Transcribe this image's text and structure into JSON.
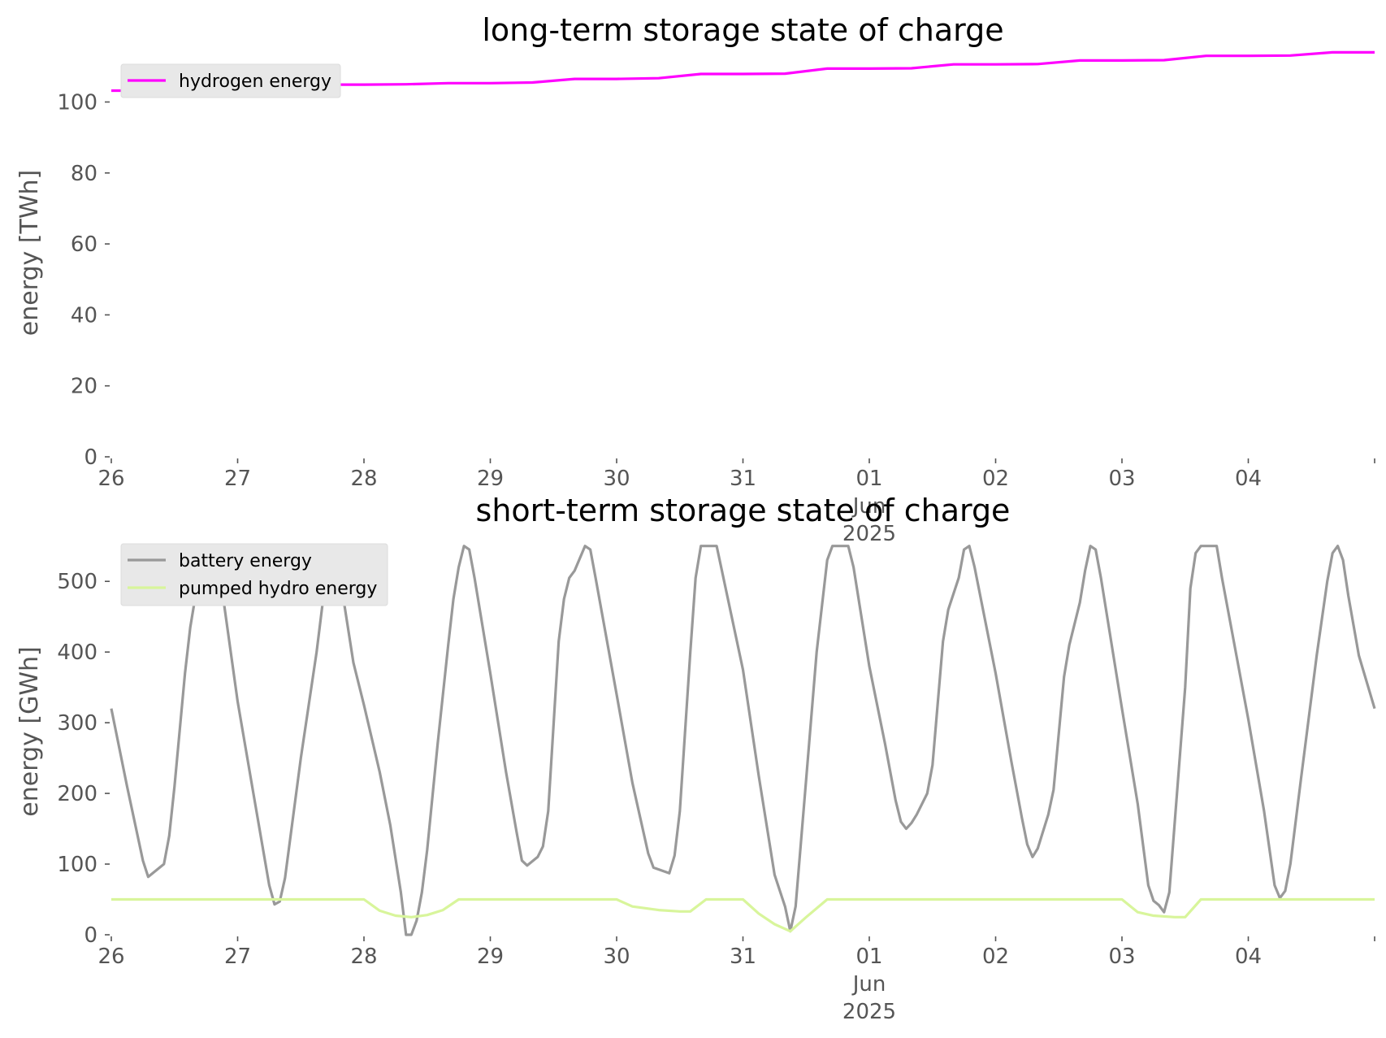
{
  "chart_data": [
    {
      "type": "line",
      "title": "long-term storage state of charge",
      "xlabel": "",
      "ylabel": "energy [TWh]",
      "ylim": [
        0,
        115
      ],
      "yticks": [
        0,
        20,
        40,
        60,
        80,
        100
      ],
      "xlim": [
        "2025-05-26",
        "2025-06-05"
      ],
      "xticks": [
        "2025-05-26",
        "2025-05-27",
        "2025-05-28",
        "2025-05-29",
        "2025-05-30",
        "2025-05-31",
        "2025-06-01",
        "2025-06-02",
        "2025-06-03",
        "2025-06-04",
        "2025-06-05"
      ],
      "xtick_labels": [
        "26",
        "27",
        "28",
        "29",
        "30",
        "31",
        "01\nJun\n2025",
        "02",
        "03",
        "04",
        ""
      ],
      "grid": false,
      "legend": "top-left",
      "series": [
        {
          "name": "hydrogen energy",
          "color": "#ff00ff",
          "points": [
            [
              "2025-05-26 00:00",
              103.2
            ],
            [
              "2025-05-26 08:00",
              103.2
            ],
            [
              "2025-05-26 16:00",
              104.2
            ],
            [
              "2025-05-27 00:00",
              104.2
            ],
            [
              "2025-05-27 08:00",
              104.3
            ],
            [
              "2025-05-27 16:00",
              104.9
            ],
            [
              "2025-05-28 00:00",
              104.9
            ],
            [
              "2025-05-28 08:00",
              105.0
            ],
            [
              "2025-05-28 16:00",
              105.3
            ],
            [
              "2025-05-29 00:00",
              105.3
            ],
            [
              "2025-05-29 08:00",
              105.5
            ],
            [
              "2025-05-29 16:00",
              106.5
            ],
            [
              "2025-05-30 00:00",
              106.5
            ],
            [
              "2025-05-30 08:00",
              106.7
            ],
            [
              "2025-05-30 16:00",
              107.9
            ],
            [
              "2025-05-31 00:00",
              107.9
            ],
            [
              "2025-05-31 08:00",
              108.0
            ],
            [
              "2025-05-31 16:00",
              109.4
            ],
            [
              "2025-06-01 00:00",
              109.4
            ],
            [
              "2025-06-01 08:00",
              109.5
            ],
            [
              "2025-06-01 16:00",
              110.6
            ],
            [
              "2025-06-02 00:00",
              110.6
            ],
            [
              "2025-06-02 08:00",
              110.7
            ],
            [
              "2025-06-02 16:00",
              111.7
            ],
            [
              "2025-06-03 00:00",
              111.7
            ],
            [
              "2025-06-03 08:00",
              111.8
            ],
            [
              "2025-06-03 16:00",
              113.0
            ],
            [
              "2025-06-04 00:00",
              113.0
            ],
            [
              "2025-06-04 08:00",
              113.1
            ],
            [
              "2025-06-04 16:00",
              114.0
            ],
            [
              "2025-06-05 00:00",
              114.0
            ]
          ]
        }
      ]
    },
    {
      "type": "line",
      "title": "short-term storage state of charge",
      "xlabel": "",
      "ylabel": "energy [GWh]",
      "ylim": [
        0,
        575
      ],
      "yticks": [
        0,
        100,
        200,
        300,
        400,
        500
      ],
      "xlim": [
        "2025-05-26",
        "2025-06-05"
      ],
      "xticks": [
        "2025-05-26",
        "2025-05-27",
        "2025-05-28",
        "2025-05-29",
        "2025-05-30",
        "2025-05-31",
        "2025-06-01",
        "2025-06-02",
        "2025-06-03",
        "2025-06-04",
        "2025-06-05"
      ],
      "xtick_labels": [
        "26",
        "27",
        "28",
        "29",
        "30",
        "31",
        "01\nJun\n2025",
        "02",
        "03",
        "04",
        ""
      ],
      "grid": false,
      "legend": "top-left",
      "series": [
        {
          "name": "battery energy",
          "color": "#999999",
          "points": [
            [
              "2025-05-26 00:00",
              320
            ],
            [
              "2025-05-26 03:00",
              210
            ],
            [
              "2025-05-26 06:00",
              105
            ],
            [
              "2025-05-26 07:00",
              82
            ],
            [
              "2025-05-26 10:00",
              100
            ],
            [
              "2025-05-26 11:00",
              140
            ],
            [
              "2025-05-26 12:00",
              210
            ],
            [
              "2025-05-26 14:00",
              370
            ],
            [
              "2025-05-26 15:00",
              435
            ],
            [
              "2025-05-26 16:00",
              480
            ],
            [
              "2025-05-26 18:00",
              535
            ],
            [
              "2025-05-26 19:00",
              550
            ],
            [
              "2025-05-26 20:00",
              535
            ],
            [
              "2025-05-26 21:00",
              490
            ],
            [
              "2025-05-27 00:00",
              330
            ],
            [
              "2025-05-27 03:00",
              200
            ],
            [
              "2025-05-27 06:00",
              70
            ],
            [
              "2025-05-27 07:00",
              43
            ],
            [
              "2025-05-27 08:00",
              47
            ],
            [
              "2025-05-27 09:00",
              80
            ],
            [
              "2025-05-27 12:00",
              250
            ],
            [
              "2025-05-27 15:00",
              400
            ],
            [
              "2025-05-27 17:00",
              520
            ],
            [
              "2025-05-27 18:00",
              550
            ],
            [
              "2025-05-27 19:00",
              535
            ],
            [
              "2025-05-27 20:00",
              480
            ],
            [
              "2025-05-27 22:00",
              385
            ],
            [
              "2025-05-28 00:00",
              325
            ],
            [
              "2025-05-28 03:00",
              230
            ],
            [
              "2025-05-28 05:00",
              155
            ],
            [
              "2025-05-28 07:00",
              60
            ],
            [
              "2025-05-28 08:00",
              0
            ],
            [
              "2025-05-28 09:00",
              0
            ],
            [
              "2025-05-28 10:00",
              20
            ],
            [
              "2025-05-28 11:00",
              60
            ],
            [
              "2025-05-28 12:00",
              120
            ],
            [
              "2025-05-28 14:00",
              270
            ],
            [
              "2025-05-28 16:00",
              410
            ],
            [
              "2025-05-28 17:00",
              475
            ],
            [
              "2025-05-28 18:00",
              520
            ],
            [
              "2025-05-28 19:00",
              550
            ],
            [
              "2025-05-28 20:00",
              545
            ],
            [
              "2025-05-28 21:00",
              505
            ],
            [
              "2025-05-29 00:00",
              370
            ],
            [
              "2025-05-29 03:00",
              230
            ],
            [
              "2025-05-29 05:00",
              145
            ],
            [
              "2025-05-29 06:00",
              105
            ],
            [
              "2025-05-29 07:00",
              98
            ],
            [
              "2025-05-29 09:00",
              110
            ],
            [
              "2025-05-29 10:00",
              125
            ],
            [
              "2025-05-29 11:00",
              175
            ],
            [
              "2025-05-29 13:00",
              415
            ],
            [
              "2025-05-29 14:00",
              475
            ],
            [
              "2025-05-29 15:00",
              505
            ],
            [
              "2025-05-29 16:00",
              515
            ],
            [
              "2025-05-29 18:00",
              550
            ],
            [
              "2025-05-29 19:00",
              545
            ],
            [
              "2025-05-29 20:00",
              505
            ],
            [
              "2025-05-30 00:00",
              340
            ],
            [
              "2025-05-30 03:00",
              215
            ],
            [
              "2025-05-30 06:00",
              115
            ],
            [
              "2025-05-30 07:00",
              95
            ],
            [
              "2025-05-30 10:00",
              87
            ],
            [
              "2025-05-30 11:00",
              112
            ],
            [
              "2025-05-30 12:00",
              175
            ],
            [
              "2025-05-30 14:00",
              400
            ],
            [
              "2025-05-30 15:00",
              505
            ],
            [
              "2025-05-30 16:00",
              550
            ],
            [
              "2025-05-30 19:00",
              550
            ],
            [
              "2025-05-30 20:00",
              515
            ],
            [
              "2025-05-31 00:00",
              375
            ],
            [
              "2025-05-31 03:00",
              225
            ],
            [
              "2025-05-31 06:00",
              85
            ],
            [
              "2025-05-31 08:00",
              40
            ],
            [
              "2025-05-31 09:00",
              5
            ],
            [
              "2025-05-31 10:00",
              40
            ],
            [
              "2025-05-31 12:00",
              220
            ],
            [
              "2025-05-31 14:00",
              400
            ],
            [
              "2025-05-31 16:00",
              530
            ],
            [
              "2025-05-31 17:00",
              550
            ],
            [
              "2025-05-31 20:00",
              550
            ],
            [
              "2025-05-31 21:00",
              520
            ],
            [
              "2025-06-01 00:00",
              380
            ],
            [
              "2025-06-01 03:00",
              270
            ],
            [
              "2025-06-01 05:00",
              190
            ],
            [
              "2025-06-01 06:00",
              160
            ],
            [
              "2025-06-01 07:00",
              150
            ],
            [
              "2025-06-01 08:00",
              158
            ],
            [
              "2025-06-01 09:00",
              170
            ],
            [
              "2025-06-01 11:00",
              200
            ],
            [
              "2025-06-01 12:00",
              240
            ],
            [
              "2025-06-01 14:00",
              415
            ],
            [
              "2025-06-01 15:00",
              460
            ],
            [
              "2025-06-01 17:00",
              505
            ],
            [
              "2025-06-01 18:00",
              545
            ],
            [
              "2025-06-01 19:00",
              550
            ],
            [
              "2025-06-01 20:00",
              520
            ],
            [
              "2025-06-02 00:00",
              370
            ],
            [
              "2025-06-02 03:00",
              245
            ],
            [
              "2025-06-02 05:00",
              165
            ],
            [
              "2025-06-02 06:00",
              128
            ],
            [
              "2025-06-02 07:00",
              110
            ],
            [
              "2025-06-02 08:00",
              122
            ],
            [
              "2025-06-02 10:00",
              170
            ],
            [
              "2025-06-02 11:00",
              205
            ],
            [
              "2025-06-02 13:00",
              365
            ],
            [
              "2025-06-02 14:00",
              410
            ],
            [
              "2025-06-02 16:00",
              470
            ],
            [
              "2025-06-02 17:00",
              515
            ],
            [
              "2025-06-02 18:00",
              550
            ],
            [
              "2025-06-02 19:00",
              545
            ],
            [
              "2025-06-02 20:00",
              505
            ],
            [
              "2025-06-03 00:00",
              320
            ],
            [
              "2025-06-03 03:00",
              185
            ],
            [
              "2025-06-03 05:00",
              70
            ],
            [
              "2025-06-03 06:00",
              48
            ],
            [
              "2025-06-03 07:00",
              42
            ],
            [
              "2025-06-03 08:00",
              32
            ],
            [
              "2025-06-03 09:00",
              60
            ],
            [
              "2025-06-03 12:00",
              350
            ],
            [
              "2025-06-03 13:00",
              490
            ],
            [
              "2025-06-03 14:00",
              540
            ],
            [
              "2025-06-03 15:00",
              550
            ],
            [
              "2025-06-03 18:00",
              550
            ],
            [
              "2025-06-03 19:00",
              505
            ],
            [
              "2025-06-04 00:00",
              305
            ],
            [
              "2025-06-04 03:00",
              175
            ],
            [
              "2025-06-04 05:00",
              70
            ],
            [
              "2025-06-04 06:00",
              52
            ],
            [
              "2025-06-04 07:00",
              62
            ],
            [
              "2025-06-04 08:00",
              100
            ],
            [
              "2025-06-04 10:00",
              220
            ],
            [
              "2025-06-04 13:00",
              395
            ],
            [
              "2025-06-04 15:00",
              500
            ],
            [
              "2025-06-04 16:00",
              540
            ],
            [
              "2025-06-04 17:00",
              550
            ],
            [
              "2025-06-04 18:00",
              530
            ],
            [
              "2025-06-04 19:00",
              480
            ],
            [
              "2025-06-04 21:00",
              395
            ],
            [
              "2025-06-05 00:00",
              320
            ]
          ]
        },
        {
          "name": "pumped hydro energy",
          "color": "#d8f59b",
          "points": [
            [
              "2025-05-26 00:00",
              50
            ],
            [
              "2025-05-28 00:00",
              50
            ],
            [
              "2025-05-28 03:00",
              34
            ],
            [
              "2025-05-28 06:00",
              27
            ],
            [
              "2025-05-28 09:00",
              25
            ],
            [
              "2025-05-28 12:00",
              28
            ],
            [
              "2025-05-28 15:00",
              35
            ],
            [
              "2025-05-28 18:00",
              50
            ],
            [
              "2025-05-30 00:00",
              50
            ],
            [
              "2025-05-30 03:00",
              40
            ],
            [
              "2025-05-30 08:00",
              35
            ],
            [
              "2025-05-30 12:00",
              33
            ],
            [
              "2025-05-30 14:00",
              33
            ],
            [
              "2025-05-30 17:00",
              50
            ],
            [
              "2025-05-31 00:00",
              50
            ],
            [
              "2025-05-31 03:00",
              30
            ],
            [
              "2025-05-31 06:00",
              15
            ],
            [
              "2025-05-31 09:00",
              5
            ],
            [
              "2025-05-31 12:00",
              25
            ],
            [
              "2025-05-31 16:00",
              50
            ],
            [
              "2025-06-03 00:00",
              50
            ],
            [
              "2025-06-03 03:00",
              32
            ],
            [
              "2025-06-03 06:00",
              27
            ],
            [
              "2025-06-03 10:00",
              25
            ],
            [
              "2025-06-03 12:00",
              25
            ],
            [
              "2025-06-03 15:00",
              50
            ],
            [
              "2025-06-05 00:00",
              50
            ]
          ]
        }
      ]
    }
  ],
  "figure": {
    "title_0": "long-term storage state of charge",
    "ylabel_0": "energy [TWh]",
    "title_1": "short-term storage state of charge",
    "ylabel_1": "energy [GWh]"
  }
}
